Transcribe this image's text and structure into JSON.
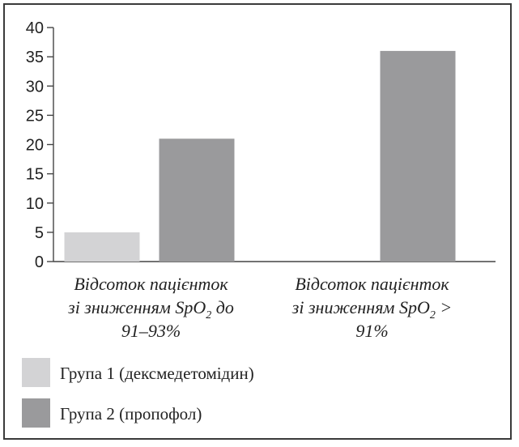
{
  "chart_data": {
    "type": "bar",
    "ylim": [
      0,
      40
    ],
    "yticks": [
      "0",
      "5",
      "10",
      "15",
      "20",
      "25",
      "30",
      "35",
      "40"
    ],
    "categories": [
      {
        "lines": [
          {
            "text": "Відсоток пацієнток"
          },
          {
            "pre": "зі зниженням SpO",
            "sub": "2",
            "post": " до"
          },
          {
            "text": "91–93%"
          }
        ]
      },
      {
        "lines": [
          {
            "text": "Відсоток пацієнток"
          },
          {
            "pre": "зі зниженням SpO",
            "sub": "2",
            "post": " >"
          },
          {
            "text": "91%"
          }
        ]
      }
    ],
    "series": [
      {
        "name": "Група 1 (дексмедетомідин)",
        "color": "#d3d3d5",
        "values": [
          5,
          0
        ]
      },
      {
        "name": "Група 2 (пропофол)",
        "color": "#9a9a9c",
        "values": [
          21,
          36
        ]
      }
    ],
    "grid": false,
    "legend_position": "bottom-left"
  }
}
